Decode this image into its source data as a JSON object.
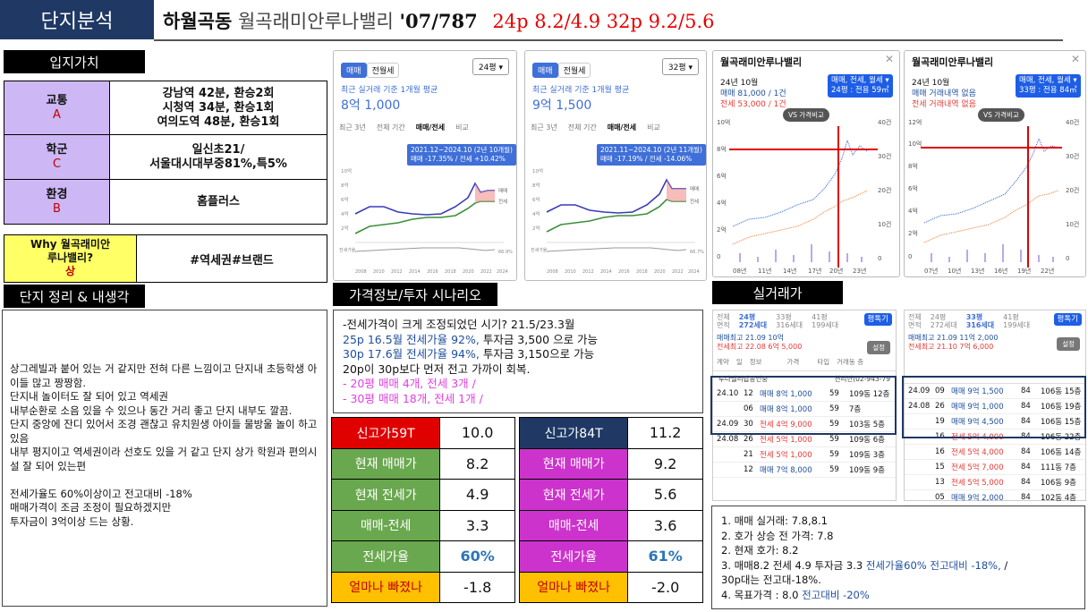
{
  "header": {
    "tag": "단지분석",
    "area": "하월곡동",
    "complex": "월곡래미안루나밸리",
    "year_units": "'07/787",
    "summary": "24p 8.2/4.9 32p 9.2/5.6"
  },
  "location": {
    "section_title": "입지가치",
    "rows": [
      {
        "label": "교통",
        "grade": "A",
        "value": "강남역 42분, 환승2회\n시청역 34분, 환승1회\n여의도역 48분, 환승1회"
      },
      {
        "label": "학군",
        "grade": "C",
        "value": "일신초21/\n서울대시대부중81%,특5%"
      },
      {
        "label": "환경",
        "grade": "B",
        "value": "홈플러스"
      }
    ],
    "why_label": "Why 월곡래미안\n루나밸리?",
    "why_grade": "상",
    "why_value": "#역세권#브랜드"
  },
  "memo": {
    "section_title": "단지 정리 & 내생각",
    "text": "상그레빌과 붙어 있는 거 같지만 전혀 다른 느낌이고 단지내 초등학생 아이들 많고 짱짱함.\n단지내 놀이터도 잘 되어 있고 역세권\n내부순환로 소음 있을 수 있으나 동간 거리 좋고 단지 내부도 깔끔.\n단지 중앙에 잔디 있어서 조경 괜찮고 유치원생 아이들 물방울 놀이 하고 있음\n내부 평지이고 역세권이라 선호도 있을 거 같고 단지 상가 학원과 편의시설 잘 되어 있는편\n\n전세가율도 60%이상이고 전고대비 -18%\n매매가격이 조금 조정이 필요하겠지만\n투자금이 3억이상 드는 상황."
  },
  "scenario": {
    "section_title": "가격정보/투자 시나리오",
    "line1": "-전세가격이 크게 조정되었던 시기? 21.5/23.3월",
    "line2_blue": "25p 16.5월 전세가율 92%,",
    "line2_rest": " 투자금 3,500 으로 가능",
    "line3_blue": "30p 17.6월 전세가율 94%,",
    "line3_rest": " 투자금 3,150으로 가능",
    "line4": "20p이 30p보다 먼저 전고 가까이 회복.",
    "line5": "-   20평 매매 4개, 전세 3개 /",
    "line6": "-   30평 매매 18개, 전세 1개 /"
  },
  "metrics_59": [
    {
      "label": "신고가59T",
      "value": "10.0",
      "bg": "#e00000"
    },
    {
      "label": "현재 매매가",
      "value": "8.2",
      "bg": "#6aa84f"
    },
    {
      "label": "현재 전세가",
      "value": "4.9",
      "bg": "#6aa84f"
    },
    {
      "label": "매매-전세",
      "value": "3.3",
      "bg": "#6aa84f"
    },
    {
      "label": "전세가율",
      "value": "60%",
      "bg": "#6aa84f",
      "value_color": "#2e75b6"
    },
    {
      "label": "얼마나 빠졌나",
      "value": "-1.8",
      "bg": "#ffc000"
    }
  ],
  "metrics_84": [
    {
      "label": "신고가84T",
      "value": "11.2",
      "bg": "#1f3864"
    },
    {
      "label": "현재 매매가",
      "value": "9.2",
      "bg": "#cc33cc"
    },
    {
      "label": "현재 전세가",
      "value": "5.6",
      "bg": "#cc33cc"
    },
    {
      "label": "매매-전세",
      "value": "3.6",
      "bg": "#cc33cc"
    },
    {
      "label": "전세가율",
      "value": "61%",
      "bg": "#cc33cc",
      "value_color": "#2e75b6"
    },
    {
      "label": "얼마나 빠졌나",
      "value": "-2.0",
      "bg": "#ffc000"
    }
  ],
  "price_chart_24": {
    "tab_sale": "매매",
    "tab_rent": "전월세",
    "size": "24평",
    "caption": "최근 실거래 기준 1개월 평균",
    "price": "8억 1,000",
    "periods": [
      "최근 3년",
      "전체 기간",
      "매매/전세",
      "비교"
    ],
    "tooltip_range": "2021.12~2024.10 (2년 10개월)",
    "tooltip_detail": "매매 -17.35% / 전세 +10.42%",
    "x_labels": [
      "2008",
      "2010",
      "2012",
      "2014",
      "2016",
      "2018",
      "2020",
      "2022",
      "2024"
    ],
    "y_labels": [
      "10억",
      "8억",
      "6억",
      "4억",
      "2억"
    ],
    "legend_sale": "매매",
    "legend_rent": "전세",
    "vol_label": "전세가율",
    "ratio": "66.9%"
  },
  "price_chart_32": {
    "tab_sale": "매매",
    "tab_rent": "전월세",
    "size": "32평",
    "caption": "최근 실거래 기준 1개월 평균",
    "price": "9억 1,500",
    "periods": [
      "최근 3년",
      "전체 기간",
      "매매/전세",
      "비교"
    ],
    "tooltip_range": "2021.11~2024.10 (2년 11개월)",
    "tooltip_detail": "매매 -17.19% / 전세 -14.06%",
    "x_labels": [
      "2008",
      "2010",
      "2012",
      "2014",
      "2016",
      "2018",
      "2020",
      "2022",
      "2024"
    ],
    "y_labels": [
      "10억",
      "8억",
      "6억",
      "4억",
      "2억"
    ],
    "legend_sale": "매매",
    "legend_rent": "전세",
    "vol_label": "전세가율",
    "ratio": "66.7%"
  },
  "market_chart_24": {
    "title": "월곡래미안루나밸리",
    "month": "24년 10월",
    "sale": "매매 81,000 / 1건",
    "rent": "전세 53,000 / 1건",
    "badge1": "매매, 전세, 월세 ▾",
    "badge2": "24평 : 전용 59㎡",
    "compare": "VS 가격비교",
    "y_left": [
      "10억",
      "8억",
      "6억",
      "4억",
      "2억",
      "0"
    ],
    "y_right": [
      "40건",
      "30건",
      "20건",
      "10건",
      "0"
    ],
    "x_labels": [
      "08년",
      "11년",
      "14년",
      "17년",
      "20년",
      "23년"
    ]
  },
  "market_chart_32": {
    "title": "월곡래미안루나밸리",
    "month": "24년 10월",
    "sale": "매매 거래내역 없음",
    "rent": "전세 거래내역 없음",
    "badge1": "매매, 전세, 월세 ▾",
    "badge2": "33평 : 전용 84㎡",
    "compare": "VS 가격비교",
    "y_left": [
      "12억",
      "10억",
      "8억",
      "6억",
      "4억",
      "2억",
      "0"
    ],
    "y_right": [
      "40건",
      "30건",
      "20건",
      "10건",
      "0"
    ],
    "x_labels": [
      "07년",
      "10년",
      "13년",
      "16년",
      "19년",
      "22년"
    ]
  },
  "trade": {
    "section_title": "실거래가",
    "left": {
      "tabs": [
        "24평\n272세대",
        "33평\n316세대",
        "41평\n199세대"
      ],
      "btn": "평톡기",
      "hi_sale": "매매최고 21.09 10억",
      "hi_rent": "전세최고 22.08 6억 5,000",
      "btn2": "설정",
      "cols": [
        "계약",
        "일",
        "정보",
        "가격",
        "타입",
        "거래동 층"
      ],
      "banner": "루나밸리탑공인중",
      "banner2": "천리안(02-943-79",
      "rows": [
        [
          "24.10",
          "12",
          "매매 8억 1,000",
          "59",
          "109동 12층"
        ],
        [
          "",
          "06",
          "매매 8억 1,000",
          "59",
          "7층"
        ],
        [
          "24.09",
          "30",
          "전세 4억 9,000",
          "59",
          "103동 5층"
        ],
        [
          "24.08",
          "26",
          "전세 5억 1,000",
          "59",
          "109동 6층"
        ],
        [
          "",
          "21",
          "전세 5억 1,000",
          "59",
          "109동 3층"
        ],
        [
          "",
          "12",
          "매매 7억 8,000",
          "59",
          "109동 9층"
        ]
      ]
    },
    "right": {
      "tabs": [
        "24평\n272세대",
        "33평\n316세대",
        "41평\n199세대"
      ],
      "btn": "평톡기",
      "hi_sale": "매매최고 21.09 11억 2,000",
      "hi_rent": "전세최고 21.10 7억 6,000",
      "btn2": "설정",
      "rows": [
        [
          "24.09",
          "09",
          "매매 9억 1,500",
          "84",
          "106동 15층"
        ],
        [
          "24.08",
          "26",
          "매매 9억 1,000",
          "84",
          "106동 19층"
        ],
        [
          "",
          "19",
          "매매 9억 4,500",
          "84",
          "106동 15층"
        ],
        [
          "",
          "16",
          "전세 5억 4,000",
          "84",
          "106동 22층"
        ],
        [
          "",
          "16",
          "전세 5억 4,000",
          "84",
          "106동 14층"
        ],
        [
          "",
          "15",
          "전세 5억 7,000",
          "84",
          "111동 7층"
        ],
        [
          "",
          "13",
          "전세 5억 5,000",
          "84",
          "106동 9층"
        ],
        [
          "",
          "05",
          "매매 9억 2,000",
          "84",
          "102동 4층"
        ]
      ]
    }
  },
  "summary": {
    "l1": "1. 매매 실거래: 7.8,8.1",
    "l2": "2. 호가 상승 전 가격: 7.8",
    "l3": "2. 현재 호가: 8.2",
    "l4a": "3. 매매8.2 전세 4.9 투자금 3.3 ",
    "l4b": "전세가율60%  전고대비 -18%, ",
    "l4c": "/",
    "l5": "30p대는 전고대-18%.",
    "l6a": "4. 목표가격 : 8.0 ",
    "l6b": "전고대비 -20%"
  }
}
